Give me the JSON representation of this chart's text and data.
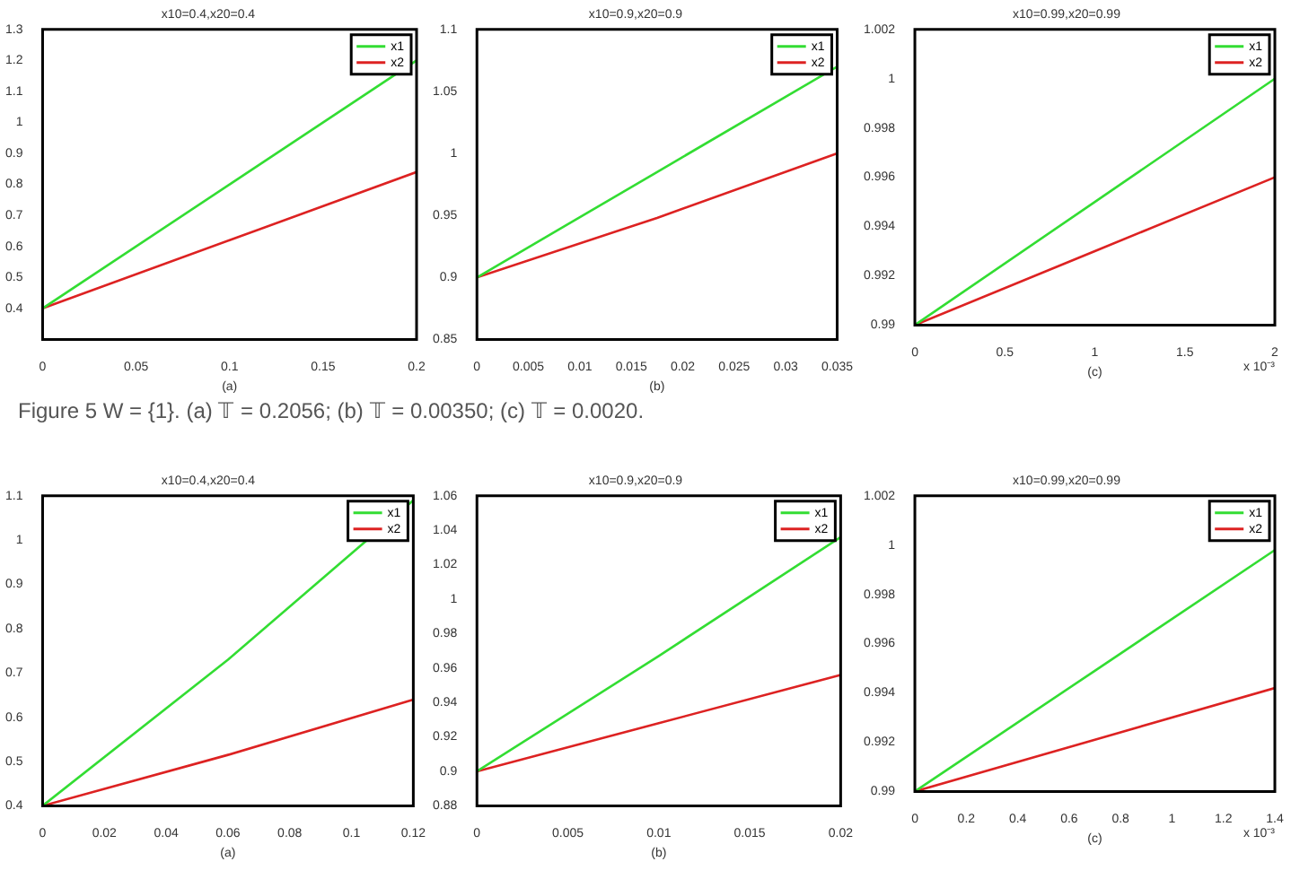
{
  "chart_data": [
    {
      "type": "line",
      "title": "x10=0.4,x20=0.4",
      "xlabel": "(a)",
      "x": [
        0,
        0.1,
        0.2
      ],
      "xlim": [
        0,
        0.2
      ],
      "xticks": [
        0,
        0.05,
        0.1,
        0.15,
        0.2
      ],
      "ylim": [
        0.3,
        1.3
      ],
      "yticks": [
        0.4,
        0.5,
        0.6,
        0.7,
        0.8,
        0.9,
        1,
        1.1,
        1.2,
        1.3
      ],
      "legend": "top right",
      "grid": false,
      "marker": "none",
      "series": [
        {
          "name": "x1",
          "color": "#33dd33",
          "values": [
            0.4,
            0.8,
            1.2
          ]
        },
        {
          "name": "x2",
          "color": "#dd2222",
          "values": [
            0.4,
            0.62,
            0.84
          ]
        }
      ]
    },
    {
      "type": "line",
      "title": "x10=0.9,x20=0.9",
      "xlabel": "(b)",
      "x": [
        0,
        0.0175,
        0.035
      ],
      "xlim": [
        0,
        0.035
      ],
      "xticks": [
        0,
        0.005,
        0.01,
        0.015,
        0.02,
        0.025,
        0.03,
        0.035
      ],
      "ylim": [
        0.85,
        1.1
      ],
      "yticks": [
        0.85,
        0.9,
        0.95,
        1,
        1.05,
        1.1
      ],
      "legend": "top right",
      "grid": false,
      "marker": "none",
      "series": [
        {
          "name": "x1",
          "color": "#33dd33",
          "values": [
            0.9,
            0.985,
            1.07
          ]
        },
        {
          "name": "x2",
          "color": "#dd2222",
          "values": [
            0.9,
            0.948,
            1.0
          ]
        }
      ]
    },
    {
      "type": "line",
      "title": "x10=0.99,x20=0.99",
      "xlabel": "(c)",
      "annotations": [
        "x 10⁻³"
      ],
      "x": [
        0,
        1,
        2
      ],
      "xlim": [
        0,
        2
      ],
      "xticks": [
        0,
        0.5,
        1,
        1.5,
        2
      ],
      "ylim": [
        0.99,
        1.002
      ],
      "yticks": [
        0.99,
        0.992,
        0.994,
        0.996,
        0.998,
        1,
        1.002
      ],
      "legend": "top right",
      "grid": false,
      "marker": "none",
      "series": [
        {
          "name": "x1",
          "color": "#33dd33",
          "values": [
            0.99,
            0.995,
            1.0
          ]
        },
        {
          "name": "x2",
          "color": "#dd2222",
          "values": [
            0.99,
            0.993,
            0.996
          ]
        }
      ]
    },
    {
      "type": "other",
      "annotations": [
        "Figure 5  W = {1}. (a) 𝕋 = 0.2056; (b) 𝕋 = 0.00350; (c) 𝕋 = 0.0020."
      ]
    },
    {
      "type": "line",
      "title": "x10=0.4,x20=0.4",
      "xlabel": "(a)",
      "x": [
        0,
        0.06,
        0.12
      ],
      "xlim": [
        0,
        0.12
      ],
      "xticks": [
        0,
        0.02,
        0.04,
        0.06,
        0.08,
        0.1,
        0.12
      ],
      "ylim": [
        0.4,
        1.1
      ],
      "yticks": [
        0.4,
        0.5,
        0.6,
        0.7,
        0.8,
        0.9,
        1,
        1.1
      ],
      "legend": "top right",
      "grid": false,
      "marker": "none",
      "series": [
        {
          "name": "x1",
          "color": "#33dd33",
          "values": [
            0.4,
            0.73,
            1.09
          ]
        },
        {
          "name": "x2",
          "color": "#dd2222",
          "values": [
            0.4,
            0.515,
            0.64
          ]
        }
      ]
    },
    {
      "type": "line",
      "title": "x10=0.9,x20=0.9",
      "xlabel": "(b)",
      "x": [
        0,
        0.01,
        0.02
      ],
      "xlim": [
        0,
        0.02
      ],
      "xticks": [
        0,
        0.005,
        0.01,
        0.015,
        0.02
      ],
      "ylim": [
        0.88,
        1.06
      ],
      "yticks": [
        0.88,
        0.9,
        0.92,
        0.94,
        0.96,
        0.98,
        1,
        1.02,
        1.04,
        1.06
      ],
      "legend": "top right",
      "grid": false,
      "marker": "none",
      "series": [
        {
          "name": "x1",
          "color": "#33dd33",
          "values": [
            0.9,
            0.967,
            1.036
          ]
        },
        {
          "name": "x2",
          "color": "#dd2222",
          "values": [
            0.9,
            0.928,
            0.956
          ]
        }
      ]
    },
    {
      "type": "line",
      "title": "x10=0.99,x20=0.99",
      "xlabel": "(c)",
      "annotations": [
        "x 10⁻³"
      ],
      "x": [
        0,
        0.7,
        1.4
      ],
      "xlim": [
        0,
        1.4
      ],
      "xticks": [
        0,
        0.2,
        0.4,
        0.6,
        0.8,
        1,
        1.2,
        1.4
      ],
      "ylim": [
        0.99,
        1.002
      ],
      "yticks": [
        0.99,
        0.992,
        0.994,
        0.996,
        0.998,
        1,
        1.002
      ],
      "legend": "top right",
      "grid": false,
      "marker": "none",
      "series": [
        {
          "name": "x1",
          "color": "#33dd33",
          "values": [
            0.99,
            0.9949,
            0.9998
          ]
        },
        {
          "name": "x2",
          "color": "#dd2222",
          "values": [
            0.99,
            0.9921,
            0.9942
          ]
        }
      ]
    }
  ]
}
